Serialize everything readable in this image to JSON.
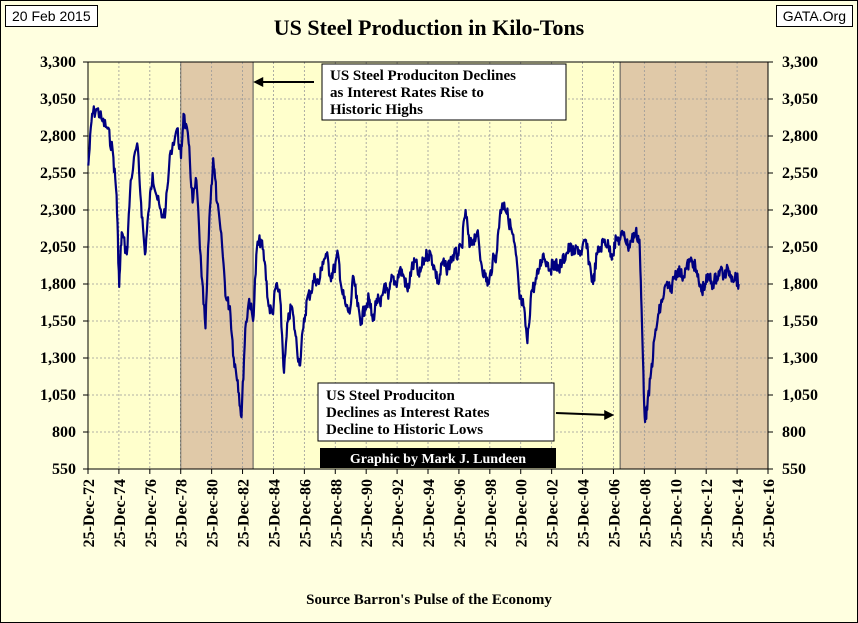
{
  "header": {
    "date": "20 Feb 2015",
    "source": "GATA.Org"
  },
  "chart_data": {
    "type": "line",
    "title": "US Steel Production in Kilo-Tons",
    "xlabel": "Source Barron's Pulse of the Economy",
    "ylabel": "",
    "ylim": [
      550,
      3300
    ],
    "yticks": [
      550,
      800,
      1050,
      1300,
      1550,
      1800,
      2050,
      2300,
      2550,
      2800,
      3050,
      3300
    ],
    "ytick_labels": [
      "550",
      "800",
      "1,050",
      "1,300",
      "1,550",
      "1,800",
      "2,050",
      "2,300",
      "2,550",
      "2,800",
      "3,050",
      "3,300"
    ],
    "xlim": [
      "1972-12-25",
      "2016-12-25"
    ],
    "xtick_labels": [
      "25-Dec-72",
      "25-Dec-74",
      "25-Dec-76",
      "25-Dec-78",
      "25-Dec-80",
      "25-Dec-82",
      "25-Dec-84",
      "25-Dec-86",
      "25-Dec-88",
      "25-Dec-90",
      "25-Dec-92",
      "25-Dec-94",
      "25-Dec-96",
      "25-Dec-98",
      "25-Dec-00",
      "25-Dec-02",
      "25-Dec-04",
      "25-Dec-06",
      "25-Dec-08",
      "25-Dec-10",
      "25-Dec-12",
      "25-Dec-14",
      "25-Dec-16"
    ],
    "grid": true,
    "shaded_periods": [
      [
        "1978-12-25",
        "1983-09-01"
      ],
      [
        "2007-06-01",
        "2016-12-25"
      ]
    ],
    "series": [
      {
        "values": [
          [
            "1973-01-01",
            2600
          ],
          [
            "1973-04-01",
            2950
          ],
          [
            "1973-08-01",
            2980
          ],
          [
            "1973-12-01",
            2900
          ],
          [
            "1974-04-01",
            2850
          ],
          [
            "1974-08-01",
            2700
          ],
          [
            "1974-11-01",
            2400
          ],
          [
            "1975-01-01",
            1780
          ],
          [
            "1975-03-01",
            2150
          ],
          [
            "1975-07-01",
            2000
          ],
          [
            "1975-10-01",
            2500
          ],
          [
            "1976-03-01",
            2750
          ],
          [
            "1976-06-01",
            2350
          ],
          [
            "1976-09-01",
            2000
          ],
          [
            "1976-12-01",
            2300
          ],
          [
            "1977-03-01",
            2550
          ],
          [
            "1977-06-01",
            2400
          ],
          [
            "1977-10-01",
            2250
          ],
          [
            "1978-01-01",
            2300
          ],
          [
            "1978-05-01",
            2700
          ],
          [
            "1978-10-01",
            2850
          ],
          [
            "1979-01-01",
            2650
          ],
          [
            "1979-03-01",
            2950
          ],
          [
            "1979-07-01",
            2750
          ],
          [
            "1979-10-01",
            2350
          ],
          [
            "1980-01-01",
            2500
          ],
          [
            "1980-05-01",
            1850
          ],
          [
            "1980-08-01",
            1500
          ],
          [
            "1980-11-01",
            2250
          ],
          [
            "1981-02-01",
            2650
          ],
          [
            "1981-05-01",
            2350
          ],
          [
            "1981-09-01",
            2050
          ],
          [
            "1981-12-01",
            1700
          ],
          [
            "1982-03-01",
            1650
          ],
          [
            "1982-06-01",
            1300
          ],
          [
            "1982-09-01",
            1150
          ],
          [
            "1982-12-01",
            900
          ],
          [
            "1983-03-01",
            1500
          ],
          [
            "1983-06-01",
            1700
          ],
          [
            "1983-09-01",
            1550
          ],
          [
            "1983-12-01",
            2050
          ],
          [
            "1984-03-01",
            2100
          ],
          [
            "1984-06-01",
            1950
          ],
          [
            "1984-09-01",
            1650
          ],
          [
            "1984-12-01",
            1600
          ],
          [
            "1985-03-01",
            1800
          ],
          [
            "1985-06-01",
            1700
          ],
          [
            "1985-09-01",
            1200
          ],
          [
            "1985-12-01",
            1550
          ],
          [
            "1986-03-01",
            1650
          ],
          [
            "1986-06-01",
            1450
          ],
          [
            "1986-09-01",
            1250
          ],
          [
            "1986-12-01",
            1500
          ],
          [
            "1987-03-01",
            1700
          ],
          [
            "1987-06-01",
            1750
          ],
          [
            "1987-09-01",
            1850
          ],
          [
            "1987-12-01",
            1800
          ],
          [
            "1988-03-01",
            1950
          ],
          [
            "1988-06-01",
            2000
          ],
          [
            "1988-09-01",
            1850
          ],
          [
            "1988-12-01",
            1900
          ],
          [
            "1989-03-01",
            2000
          ],
          [
            "1989-06-01",
            1750
          ],
          [
            "1989-09-01",
            1650
          ],
          [
            "1989-12-01",
            1600
          ],
          [
            "1990-03-01",
            1850
          ],
          [
            "1990-06-01",
            1650
          ],
          [
            "1990-09-01",
            1550
          ],
          [
            "1990-12-01",
            1650
          ],
          [
            "1991-03-01",
            1700
          ],
          [
            "1991-06-01",
            1550
          ],
          [
            "1991-09-01",
            1700
          ],
          [
            "1991-12-01",
            1650
          ],
          [
            "1992-03-01",
            1800
          ],
          [
            "1992-06-01",
            1700
          ],
          [
            "1992-09-01",
            1850
          ],
          [
            "1992-12-01",
            1800
          ],
          [
            "1993-03-01",
            1900
          ],
          [
            "1993-06-01",
            1850
          ],
          [
            "1993-09-01",
            1750
          ],
          [
            "1993-12-01",
            1900
          ],
          [
            "1994-03-01",
            1950
          ],
          [
            "1994-06-01",
            1850
          ],
          [
            "1994-09-01",
            1950
          ],
          [
            "1994-12-01",
            2000
          ],
          [
            "1995-03-01",
            2000
          ],
          [
            "1995-06-01",
            1900
          ],
          [
            "1995-09-01",
            1800
          ],
          [
            "1995-12-01",
            1950
          ],
          [
            "1996-03-01",
            1900
          ],
          [
            "1996-06-01",
            1950
          ],
          [
            "1996-09-01",
            2000
          ],
          [
            "1996-12-01",
            2000
          ],
          [
            "1997-03-01",
            2050
          ],
          [
            "1997-06-01",
            2300
          ],
          [
            "1997-09-01",
            2050
          ],
          [
            "1997-12-01",
            2100
          ],
          [
            "1998-03-01",
            2150
          ],
          [
            "1998-06-01",
            1950
          ],
          [
            "1998-09-01",
            1850
          ],
          [
            "1998-12-01",
            1800
          ],
          [
            "1999-03-01",
            1950
          ],
          [
            "1999-06-01",
            2000
          ],
          [
            "1999-09-01",
            2300
          ],
          [
            "1999-12-01",
            2350
          ],
          [
            "2000-03-01",
            2250
          ],
          [
            "2000-06-01",
            2150
          ],
          [
            "2000-09-01",
            2000
          ],
          [
            "2000-12-01",
            1700
          ],
          [
            "2001-03-01",
            1650
          ],
          [
            "2001-06-01",
            1400
          ],
          [
            "2001-09-01",
            1750
          ],
          [
            "2001-12-01",
            1800
          ],
          [
            "2002-03-01",
            1900
          ],
          [
            "2002-06-01",
            2000
          ],
          [
            "2002-09-01",
            1950
          ],
          [
            "2002-12-01",
            1900
          ],
          [
            "2003-03-01",
            1950
          ],
          [
            "2003-06-01",
            1900
          ],
          [
            "2003-09-01",
            1950
          ],
          [
            "2003-12-01",
            2000
          ],
          [
            "2004-03-01",
            2050
          ],
          [
            "2004-06-01",
            2000
          ],
          [
            "2004-09-01",
            2050
          ],
          [
            "2004-12-01",
            2000
          ],
          [
            "2005-03-01",
            2100
          ],
          [
            "2005-06-01",
            1950
          ],
          [
            "2005-09-01",
            1800
          ],
          [
            "2005-12-01",
            2000
          ],
          [
            "2006-03-01",
            2050
          ],
          [
            "2006-06-01",
            2100
          ],
          [
            "2006-09-01",
            2050
          ],
          [
            "2006-12-01",
            2000
          ],
          [
            "2007-03-01",
            2100
          ],
          [
            "2007-06-01",
            2100
          ],
          [
            "2007-09-01",
            2150
          ],
          [
            "2007-12-01",
            2050
          ],
          [
            "2008-03-01",
            2100
          ],
          [
            "2008-06-01",
            2150
          ],
          [
            "2008-09-01",
            2100
          ],
          [
            "2008-11-01",
            1500
          ],
          [
            "2009-01-01",
            900
          ],
          [
            "2009-03-01",
            950
          ],
          [
            "2009-06-01",
            1200
          ],
          [
            "2009-09-01",
            1450
          ],
          [
            "2009-12-01",
            1600
          ],
          [
            "2010-03-01",
            1700
          ],
          [
            "2010-06-01",
            1800
          ],
          [
            "2010-09-01",
            1750
          ],
          [
            "2010-12-01",
            1850
          ],
          [
            "2011-03-01",
            1900
          ],
          [
            "2011-06-01",
            1850
          ],
          [
            "2011-09-01",
            1900
          ],
          [
            "2011-12-01",
            1950
          ],
          [
            "2012-03-01",
            1950
          ],
          [
            "2012-06-01",
            1850
          ],
          [
            "2012-09-01",
            1750
          ],
          [
            "2012-12-01",
            1800
          ],
          [
            "2013-03-01",
            1850
          ],
          [
            "2013-06-01",
            1800
          ],
          [
            "2013-09-01",
            1850
          ],
          [
            "2013-12-01",
            1900
          ],
          [
            "2014-03-01",
            1850
          ],
          [
            "2014-06-01",
            1900
          ],
          [
            "2014-09-01",
            1850
          ],
          [
            "2014-12-01",
            1850
          ],
          [
            "2015-02-01",
            1800
          ]
        ]
      }
    ],
    "annotations": [
      {
        "text": [
          "US Steel Produciton Declines",
          "as Interest Rates Rise to",
          "Historic Highs"
        ],
        "arrow_to_date": "1983-06-01"
      },
      {
        "text": [
          "US Steel Produciton",
          "Declines  as Interest Rates",
          "Decline to Historic Lows"
        ],
        "arrow_to_date": "2007-03-01"
      }
    ],
    "credit": "Graphic by Mark J. Lundeen",
    "colors": {
      "background": "#ffffcc",
      "shade": "#e0c9a8",
      "line": "#000080",
      "grid": "#999999",
      "page": "#ffffe0"
    }
  }
}
